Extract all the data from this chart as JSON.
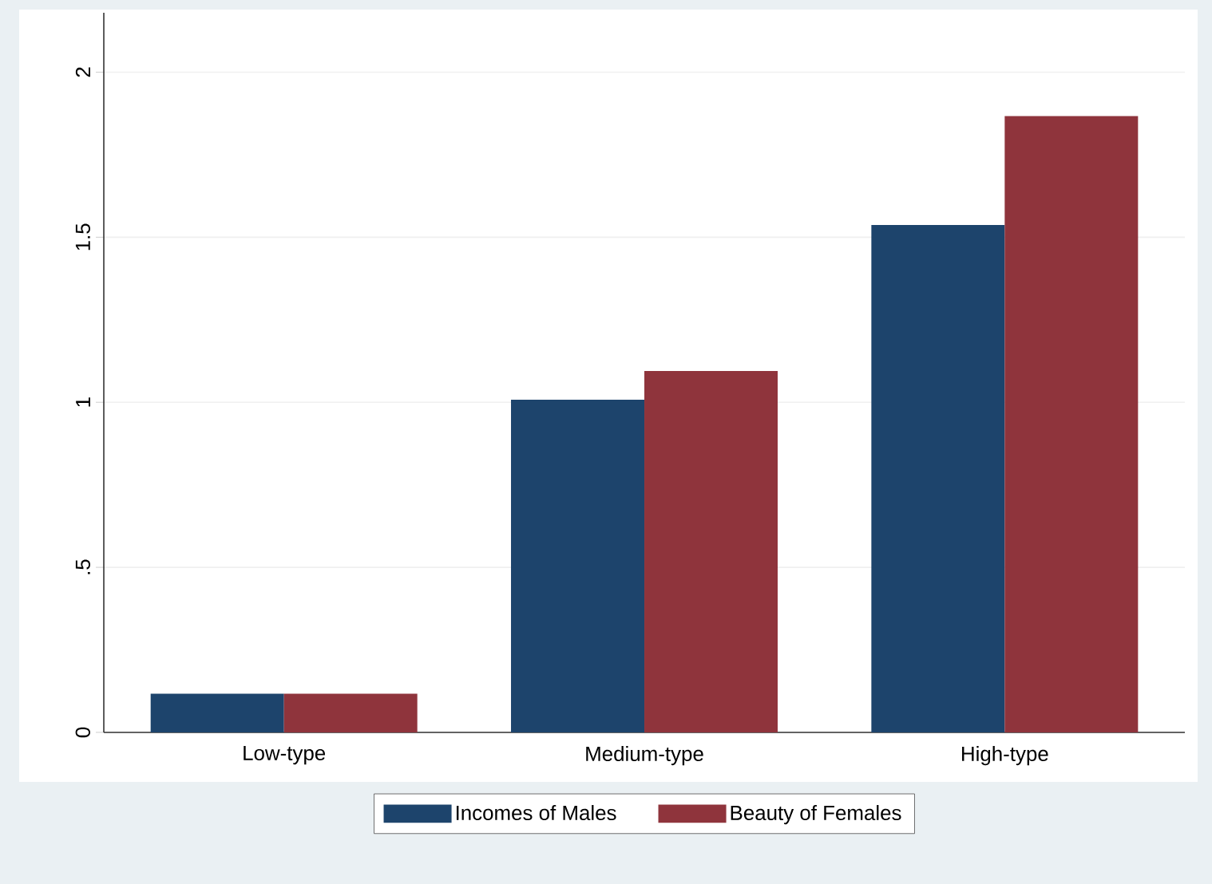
{
  "chart_data": {
    "type": "bar",
    "categories": [
      "Low-type",
      "Medium-type",
      "High-type"
    ],
    "series": [
      {
        "name": "Incomes of Males",
        "color": "#1d446c",
        "values": [
          0.117,
          1.008,
          1.537
        ]
      },
      {
        "name": "Beauty of Females",
        "color": "#8f343c",
        "values": [
          0.117,
          1.095,
          1.867
        ]
      }
    ],
    "ylim": [
      0,
      2.18
    ],
    "yticks": [
      0,
      {
        "value": 0.5,
        "label": ".5"
      },
      1,
      1.5,
      2
    ],
    "grid": "y",
    "legend": "bottom"
  }
}
